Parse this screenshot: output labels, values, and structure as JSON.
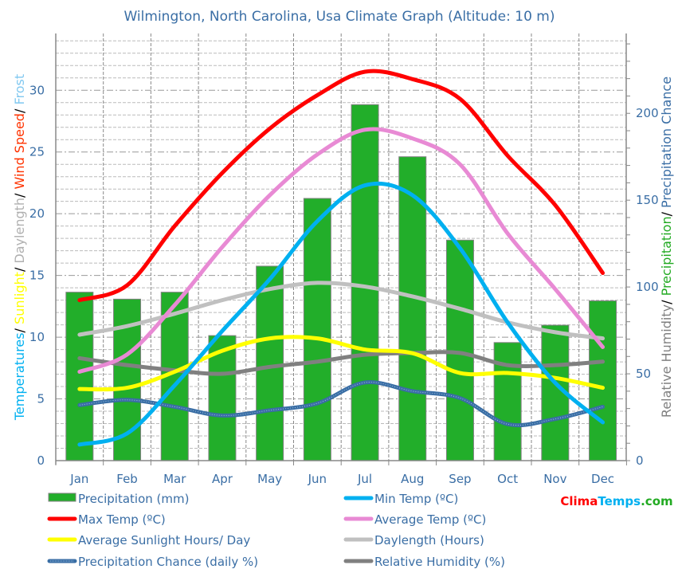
{
  "chart_data": {
    "type": "bar+line",
    "title": "Wilmington,  North Carolina, Usa Climate Graph (Altitude: 10 m)",
    "ylabel_left_parts": [
      {
        "text": "Temperatures",
        "color": "#00b0f0"
      },
      {
        "text": "/ ",
        "color": "#000000"
      },
      {
        "text": "Sunlight",
        "color": "#ffff00"
      },
      {
        "text": "/ ",
        "color": "#000000"
      },
      {
        "text": "Daylength",
        "color": "#b0b0b0"
      },
      {
        "text": "/ ",
        "color": "#000000"
      },
      {
        "text": "Wind Speed",
        "color": "#ff3300"
      },
      {
        "text": "/ ",
        "color": "#000000"
      },
      {
        "text": "Frost",
        "color": "#80c8f0"
      }
    ],
    "ylabel_right_parts": [
      {
        "text": "Relative Humidity",
        "color": "#808080"
      },
      {
        "text": "/ ",
        "color": "#000000"
      },
      {
        "text": "Precipitation",
        "color": "#22aa22"
      },
      {
        "text": "/ ",
        "color": "#000000"
      },
      {
        "text": "Precipitation Chance",
        "color": "#3a6ea5"
      }
    ],
    "categories": [
      "Jan",
      "Feb",
      "Mar",
      "Apr",
      "May",
      "Jun",
      "Jul",
      "Aug",
      "Sep",
      "Oct",
      "Nov",
      "Dec"
    ],
    "ylim_left": [
      0,
      34.6
    ],
    "ylim_right": [
      0,
      246
    ],
    "yticks_left": [
      "0",
      "5",
      "10",
      "15",
      "20",
      "25",
      "30"
    ],
    "yticks_right": [
      "0",
      "50",
      "100",
      "150",
      "200"
    ],
    "grid": true,
    "legend_placement": "bottom",
    "series": [
      {
        "name": "Precipitation (mm)",
        "type": "bar",
        "axis": "right",
        "color": "#22ae2a",
        "values": [
          97,
          93,
          97,
          72,
          112,
          151,
          205,
          175,
          127,
          68,
          78,
          92
        ]
      },
      {
        "name": "Min Temp (ºC)",
        "type": "line",
        "axis": "left",
        "color": "#00b0f0",
        "values": [
          1.3,
          2.2,
          6.1,
          10.5,
          14.7,
          19.4,
          22.3,
          21.5,
          17.2,
          11.2,
          6.3,
          3.1
        ]
      },
      {
        "name": "Max Temp (ºC)",
        "type": "line",
        "axis": "left",
        "color": "#ff0000",
        "values": [
          13.0,
          14.2,
          19.0,
          23.3,
          26.9,
          29.6,
          31.5,
          30.9,
          29.3,
          24.7,
          20.7,
          15.2
        ]
      },
      {
        "name": "Average Temp (ºC)",
        "type": "line",
        "axis": "left",
        "color": "#e88ad4",
        "values": [
          7.2,
          8.6,
          12.6,
          17.3,
          21.5,
          24.8,
          26.8,
          26.1,
          24.0,
          18.4,
          13.9,
          9.2
        ]
      },
      {
        "name": "Average Sunlight Hours/ Day",
        "type": "line",
        "axis": "left",
        "color": "#ffff00",
        "values": [
          5.8,
          5.9,
          7.2,
          8.9,
          9.9,
          9.9,
          9.0,
          8.7,
          7.1,
          7.1,
          6.7,
          5.9
        ]
      },
      {
        "name": "Daylength (Hours)",
        "type": "line",
        "axis": "left",
        "color": "#c0c0c0",
        "values": [
          10.2,
          10.9,
          11.9,
          13.0,
          13.9,
          14.4,
          14.1,
          13.3,
          12.3,
          11.2,
          10.4,
          9.9
        ]
      },
      {
        "name": "Precipitation Chance (daily %)",
        "type": "line",
        "axis": "right",
        "color": "#3a6ea5",
        "values": [
          32,
          35,
          31,
          26,
          29,
          33,
          45,
          40,
          36,
          21,
          24,
          31
        ]
      },
      {
        "name": "Relative Humidity (%)",
        "type": "line",
        "axis": "right",
        "color": "#808080",
        "values": [
          59,
          55,
          52,
          50,
          54,
          57,
          61,
          62,
          62,
          55,
          55,
          57
        ]
      }
    ]
  },
  "logo": {
    "parts": [
      {
        "text": "Clima",
        "color": "#ff0000"
      },
      {
        "text": "Temps",
        "color": "#00b0f0"
      },
      {
        "text": ".com",
        "color": "#22aa22"
      }
    ]
  }
}
